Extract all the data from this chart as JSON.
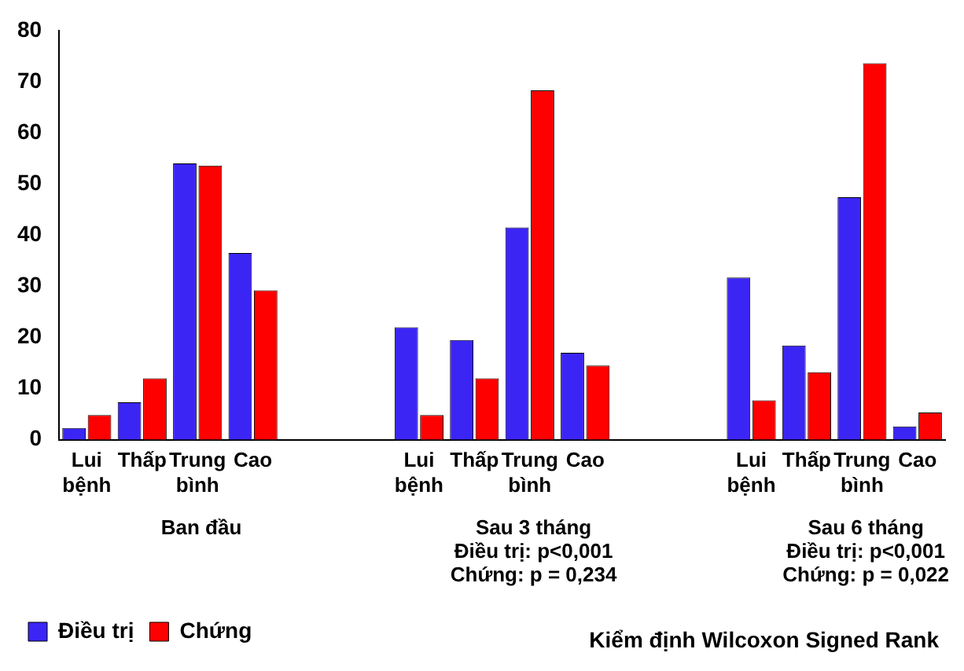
{
  "chart_data": {
    "type": "bar",
    "categories": [
      "Lui bệnh",
      "Thấp",
      "Trung bình",
      "Cao",
      null,
      null,
      "Lui bệnh",
      "Thấp",
      "Trung bình",
      "Cao",
      null,
      null,
      "Lui bệnh",
      "Thấp",
      "Trung bình",
      "Cao"
    ],
    "series": [
      {
        "name": "Điều trị",
        "color": "#3b25f5",
        "values": [
          2.3,
          7.3,
          54,
          36.5,
          null,
          null,
          22,
          19.5,
          41.5,
          17,
          null,
          null,
          31.7,
          18.4,
          47.4,
          2.6
        ]
      },
      {
        "name": "Chứng",
        "color": "#ff0000",
        "values": [
          4.8,
          12,
          53.6,
          29.2,
          null,
          null,
          4.8,
          12,
          68.3,
          14.5,
          null,
          null,
          7.7,
          13.2,
          73.6,
          5.3
        ]
      }
    ],
    "ylim": [
      0,
      80
    ],
    "yticks": [
      0,
      10,
      20,
      30,
      40,
      50,
      60,
      70,
      80
    ],
    "grid": false,
    "legend": "bottom",
    "annotations": [
      "Ban đầu",
      "Sau 3 tháng\nĐiều trị: p<0,001\nChứng: p = 0,234",
      "Sau 6 tháng\nĐiều trị: p<0,001\nChứng: p = 0,022",
      "Kiểm định Wilcoxon Signed Rank"
    ]
  }
}
